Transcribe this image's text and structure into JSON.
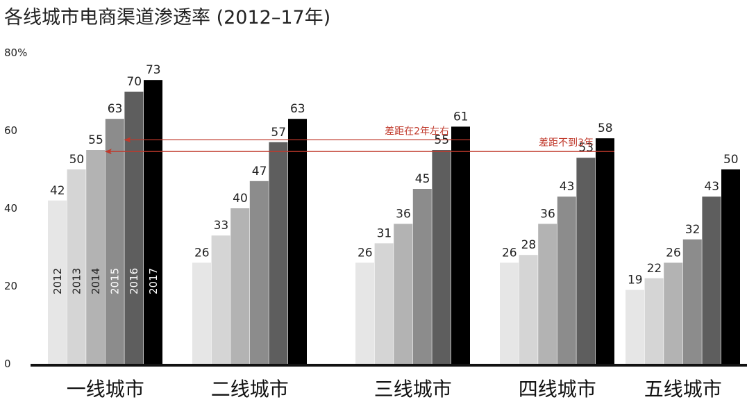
{
  "chart_data": {
    "type": "bar",
    "title": "各线城市电商渠道渗透率 (2012–17年)",
    "ylim": [
      0,
      80
    ],
    "yticks": [
      {
        "value": 0,
        "label": "0"
      },
      {
        "value": 20,
        "label": "20"
      },
      {
        "value": 40,
        "label": "40"
      },
      {
        "value": 60,
        "label": "60"
      },
      {
        "value": 80,
        "label": "80%"
      }
    ],
    "categories": [
      "一线城市",
      "二线城市",
      "三线城市",
      "四线城市",
      "五线城市"
    ],
    "series": [
      {
        "name": "2012",
        "color": "#e6e6e6",
        "label_color": "#222222",
        "values": [
          42,
          26,
          26,
          26,
          19
        ]
      },
      {
        "name": "2013",
        "color": "#d5d5d5",
        "label_color": "#222222",
        "values": [
          50,
          33,
          31,
          28,
          22
        ]
      },
      {
        "name": "2014",
        "color": "#b3b3b3",
        "label_color": "#222222",
        "values": [
          55,
          40,
          36,
          36,
          26
        ]
      },
      {
        "name": "2015",
        "color": "#8c8c8c",
        "label_color": "#ffffff",
        "values": [
          63,
          47,
          45,
          43,
          32
        ]
      },
      {
        "name": "2016",
        "color": "#5e5e5e",
        "label_color": "#ffffff",
        "values": [
          70,
          57,
          55,
          53,
          43
        ]
      },
      {
        "name": "2017",
        "color": "#000000",
        "label_color": "#ffffff",
        "values": [
          73,
          63,
          61,
          58,
          50
        ]
      }
    ],
    "annotations": [
      {
        "text": "差距在2年左右",
        "from_category": 2,
        "from_series": 5,
        "to_category": 0,
        "to_series": 3,
        "color": "#c0392b"
      },
      {
        "text": "差距不到3年",
        "from_category": 3,
        "from_series": 5,
        "to_category": 0,
        "to_series": 2,
        "color": "#c0392b"
      }
    ],
    "grid": false,
    "legend": "none"
  }
}
